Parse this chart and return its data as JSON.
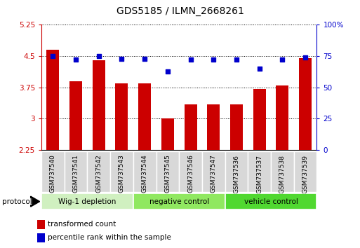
{
  "title": "GDS5185 / ILMN_2668261",
  "samples": [
    "GSM737540",
    "GSM737541",
    "GSM737542",
    "GSM737543",
    "GSM737544",
    "GSM737545",
    "GSM737546",
    "GSM737547",
    "GSM737536",
    "GSM737537",
    "GSM737538",
    "GSM737539"
  ],
  "bar_values": [
    4.65,
    3.9,
    4.4,
    3.85,
    3.85,
    3.0,
    3.35,
    3.35,
    3.35,
    3.72,
    3.8,
    4.45
  ],
  "dot_values": [
    75,
    72,
    75,
    73,
    73,
    63,
    72,
    72,
    72,
    65,
    72,
    74
  ],
  "ylim": [
    2.25,
    5.25
  ],
  "y2lim": [
    0,
    100
  ],
  "yticks": [
    2.25,
    3.0,
    3.75,
    4.5,
    5.25
  ],
  "ytick_labels": [
    "2.25",
    "3",
    "3.75",
    "4.5",
    "5.25"
  ],
  "y2ticks": [
    0,
    25,
    50,
    75,
    100
  ],
  "y2tick_labels": [
    "0",
    "25",
    "50",
    "75",
    "100%"
  ],
  "groups": [
    {
      "label": "Wig-1 depletion",
      "start": 0,
      "end": 3,
      "color": "#d0f0c0"
    },
    {
      "label": "negative control",
      "start": 4,
      "end": 7,
      "color": "#90e860"
    },
    {
      "label": "vehicle control",
      "start": 8,
      "end": 11,
      "color": "#50d830"
    }
  ],
  "bar_color": "#cc0000",
  "dot_color": "#0000cc",
  "bar_width": 0.55,
  "protocol_label": "protocol",
  "legend_bar_label": "transformed count",
  "legend_dot_label": "percentile rank within the sample",
  "title_fontsize": 10,
  "tick_fontsize": 7.5,
  "sample_fontsize": 6.5,
  "axis_color_left": "#cc0000",
  "axis_color_right": "#0000cc",
  "cell_color": "#d8d8d8",
  "cell_border_color": "#ffffff"
}
